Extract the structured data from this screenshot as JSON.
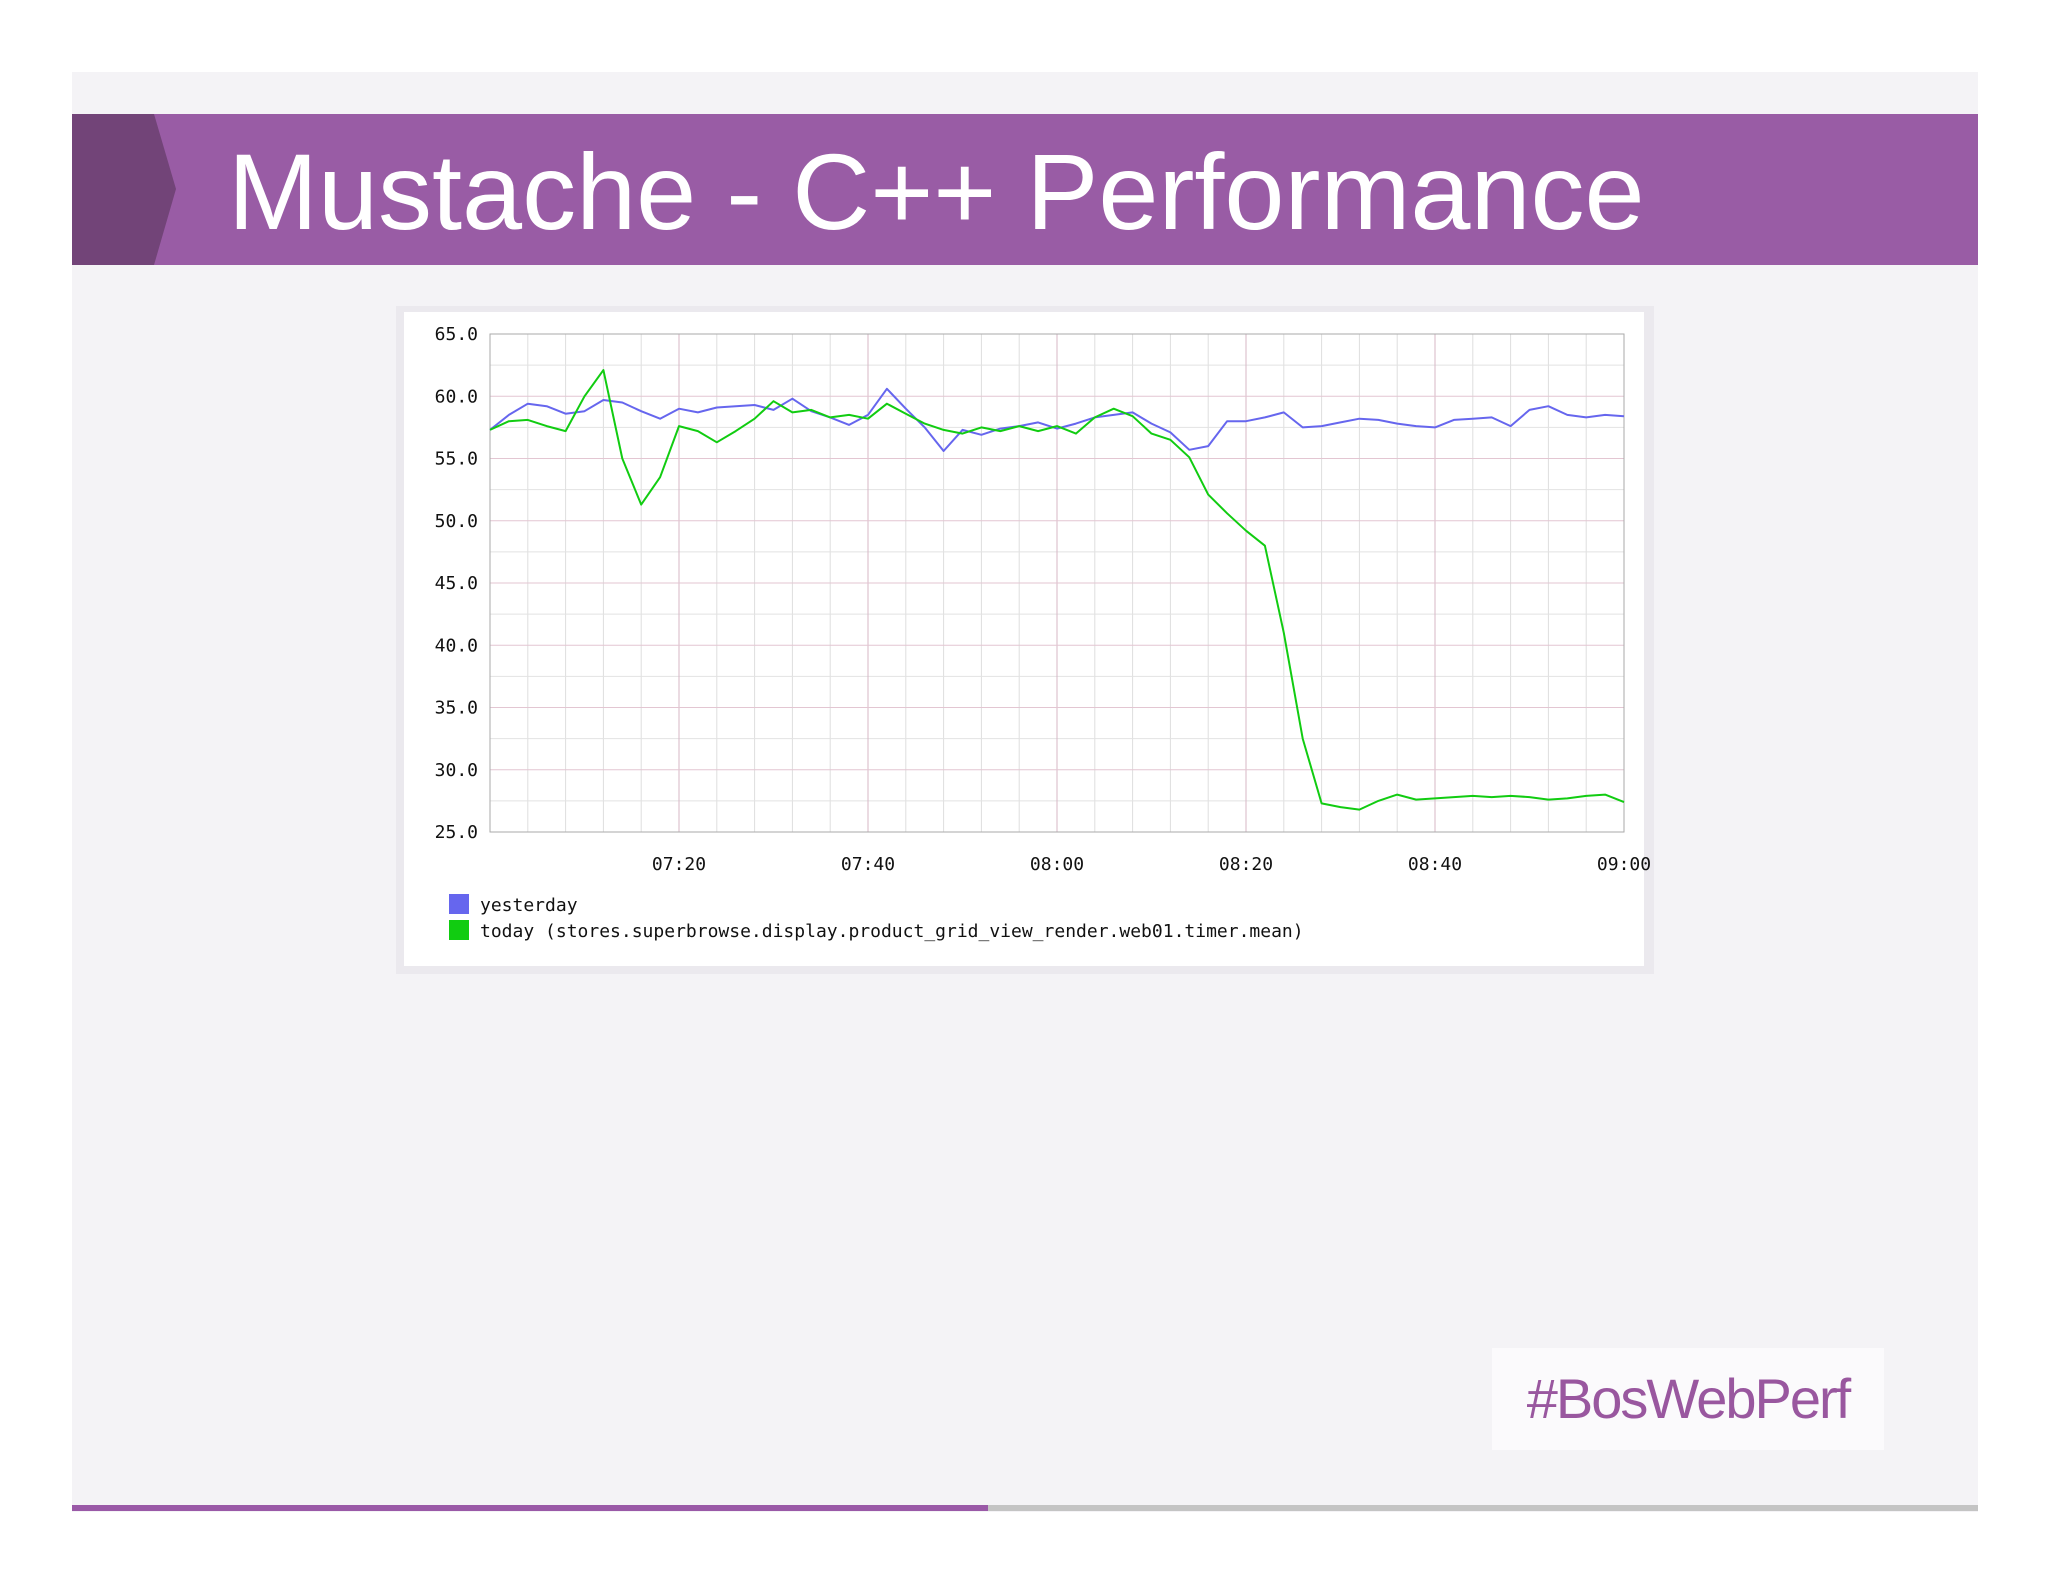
{
  "slide": {
    "title": "Mustache - C++ Performance",
    "hashtag": "#BosWebPerf",
    "accent_color": "#995ca5",
    "background_color": "#f4f3f6"
  },
  "chart_data": {
    "type": "line",
    "x_ticks": [
      "07:20",
      "07:40",
      "08:00",
      "08:20",
      "08:40",
      "09:00"
    ],
    "y_ticks": [
      "25.0",
      "30.0",
      "35.0",
      "40.0",
      "45.0",
      "50.0",
      "55.0",
      "60.0",
      "65.0"
    ],
    "ylim": [
      25,
      65
    ],
    "xlim": [
      "07:00",
      "09:00"
    ],
    "grid": true,
    "legend_position": "bottom-left",
    "series": [
      {
        "name": "yesterday",
        "color": "#6666ee",
        "x": [
          "07:00",
          "07:02",
          "07:04",
          "07:06",
          "07:08",
          "07:10",
          "07:12",
          "07:14",
          "07:16",
          "07:18",
          "07:20",
          "07:22",
          "07:24",
          "07:26",
          "07:28",
          "07:30",
          "07:32",
          "07:34",
          "07:36",
          "07:38",
          "07:40",
          "07:42",
          "07:44",
          "07:46",
          "07:48",
          "07:50",
          "07:52",
          "07:54",
          "07:56",
          "07:58",
          "08:00",
          "08:02",
          "08:04",
          "08:06",
          "08:08",
          "08:10",
          "08:12",
          "08:14",
          "08:16",
          "08:18",
          "08:20",
          "08:22",
          "08:24",
          "08:26",
          "08:28",
          "08:30",
          "08:32",
          "08:34",
          "08:36",
          "08:38",
          "08:40",
          "08:42",
          "08:44",
          "08:46",
          "08:48",
          "08:50",
          "08:52",
          "08:54",
          "08:56",
          "08:58",
          "09:00"
        ],
        "y": [
          57.3,
          58.5,
          59.4,
          59.2,
          58.6,
          58.8,
          59.7,
          59.5,
          58.8,
          58.2,
          59.0,
          58.7,
          59.1,
          59.2,
          59.3,
          58.9,
          59.8,
          58.8,
          58.3,
          57.7,
          58.5,
          60.6,
          59.0,
          57.5,
          55.6,
          57.3,
          56.9,
          57.4,
          57.6,
          57.9,
          57.4,
          57.8,
          58.3,
          58.5,
          58.7,
          57.8,
          57.1,
          55.7,
          56.0,
          58.0,
          58.0,
          58.3,
          58.7,
          57.5,
          57.6,
          57.9,
          58.2,
          58.1,
          57.8,
          57.6,
          57.5,
          58.1,
          58.2,
          58.3,
          57.6,
          58.9,
          59.2,
          58.5,
          58.3,
          58.5,
          58.4
        ],
        "label": "yesterday"
      },
      {
        "name": "today",
        "color": "#11cc11",
        "x": [
          "07:00",
          "07:02",
          "07:04",
          "07:06",
          "07:08",
          "07:10",
          "07:12",
          "07:14",
          "07:16",
          "07:18",
          "07:20",
          "07:22",
          "07:24",
          "07:26",
          "07:28",
          "07:30",
          "07:32",
          "07:34",
          "07:36",
          "07:38",
          "07:40",
          "07:42",
          "07:44",
          "07:46",
          "07:48",
          "07:50",
          "07:52",
          "07:54",
          "07:56",
          "07:58",
          "08:00",
          "08:02",
          "08:04",
          "08:06",
          "08:08",
          "08:10",
          "08:12",
          "08:14",
          "08:16",
          "08:18",
          "08:20",
          "08:22",
          "08:24",
          "08:26",
          "08:28",
          "08:30",
          "08:32",
          "08:34",
          "08:36",
          "08:38",
          "08:40",
          "08:42",
          "08:44",
          "08:46",
          "08:48",
          "08:50",
          "08:52",
          "08:54",
          "08:56",
          "08:58",
          "09:00"
        ],
        "y": [
          57.3,
          58.0,
          58.1,
          57.6,
          57.2,
          60.0,
          62.1,
          55.0,
          51.3,
          53.5,
          57.6,
          57.2,
          56.3,
          57.2,
          58.2,
          59.6,
          58.7,
          58.9,
          58.3,
          58.5,
          58.2,
          59.4,
          58.6,
          57.8,
          57.3,
          57.0,
          57.5,
          57.2,
          57.6,
          57.2,
          57.6,
          57.0,
          58.3,
          59.0,
          58.4,
          57.0,
          56.5,
          55.1,
          52.1,
          50.6,
          49.2,
          48.0,
          41.0,
          32.5,
          27.3,
          27.0,
          26.8,
          27.5,
          28.0,
          27.6,
          27.7,
          27.8,
          27.9,
          27.8,
          27.9,
          27.8,
          27.6,
          27.7,
          27.9,
          28.0,
          27.4
        ],
        "label": "today (stores.superbrowse.display.product_grid_view_render.web01.timer.mean)"
      }
    ]
  }
}
